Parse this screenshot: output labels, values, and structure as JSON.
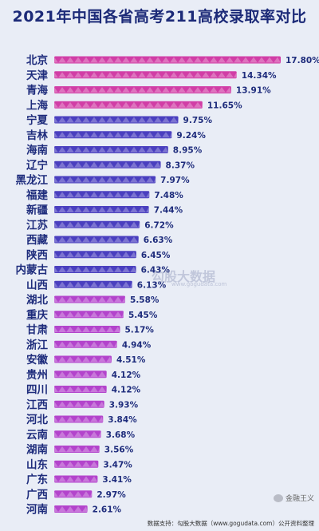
{
  "chart_data": {
    "type": "bar",
    "orientation": "horizontal",
    "title": "2021年中国各省高考211高校录取率对比",
    "xlabel": "",
    "ylabel": "",
    "xlim": [
      0,
      18.5
    ],
    "grid": false,
    "categories": [
      "北京",
      "天津",
      "青海",
      "上海",
      "宁夏",
      "吉林",
      "海南",
      "辽宁",
      "黑龙江",
      "福建",
      "新疆",
      "江苏",
      "西藏",
      "陕西",
      "内蒙古",
      "山西",
      "湖北",
      "重庆",
      "甘肃",
      "浙江",
      "安徽",
      "贵州",
      "四川",
      "江西",
      "河北",
      "云南",
      "湖南",
      "山东",
      "广东",
      "广西",
      "河南"
    ],
    "values": [
      17.8,
      14.34,
      13.91,
      11.65,
      9.75,
      9.24,
      8.95,
      8.37,
      7.97,
      7.48,
      7.44,
      6.72,
      6.63,
      6.45,
      6.43,
      6.13,
      5.58,
      5.45,
      5.17,
      4.94,
      4.51,
      4.12,
      4.12,
      3.93,
      3.84,
      3.68,
      3.56,
      3.47,
      3.41,
      2.97,
      2.61
    ],
    "value_labels": [
      "17.80%",
      "14.34%",
      "13.91%",
      "11.65%",
      "9.75%",
      "9.24%",
      "8.95%",
      "8.37%",
      "7.97%",
      "7.48%",
      "7.44%",
      "6.72%",
      "6.63%",
      "6.45%",
      "6.43%",
      "6.13%",
      "5.58%",
      "5.45%",
      "5.17%",
      "4.94%",
      "4.51%",
      "4.12%",
      "4.12%",
      "3.93%",
      "3.84%",
      "3.68%",
      "3.56%",
      "3.47%",
      "3.41%",
      "2.97%",
      "2.61%"
    ],
    "bar_colors": [
      "#d13ea6",
      "#d13ea6",
      "#d13ea6",
      "#d13ea6",
      "#4a3fbf",
      "#4a3fbf",
      "#4a3fbf",
      "#4a3fbf",
      "#4a3fbf",
      "#4a3fbf",
      "#4a3fbf",
      "#4a3fbf",
      "#4a3fbf",
      "#4a3fbf",
      "#4a3fbf",
      "#4a3fbf",
      "#b344cc",
      "#b344cc",
      "#b344cc",
      "#b344cc",
      "#b344cc",
      "#b344cc",
      "#b344cc",
      "#b344cc",
      "#b344cc",
      "#b344cc",
      "#b344cc",
      "#b344cc",
      "#b344cc",
      "#b344cc",
      "#b344cc"
    ]
  },
  "watermark": "勾股大数据",
  "watermark_url": "www.gogudata.com",
  "wechat_label": "金融王义",
  "source_text": "数据支持：勾股大数据（www.gogudata.com）公开资料整理"
}
